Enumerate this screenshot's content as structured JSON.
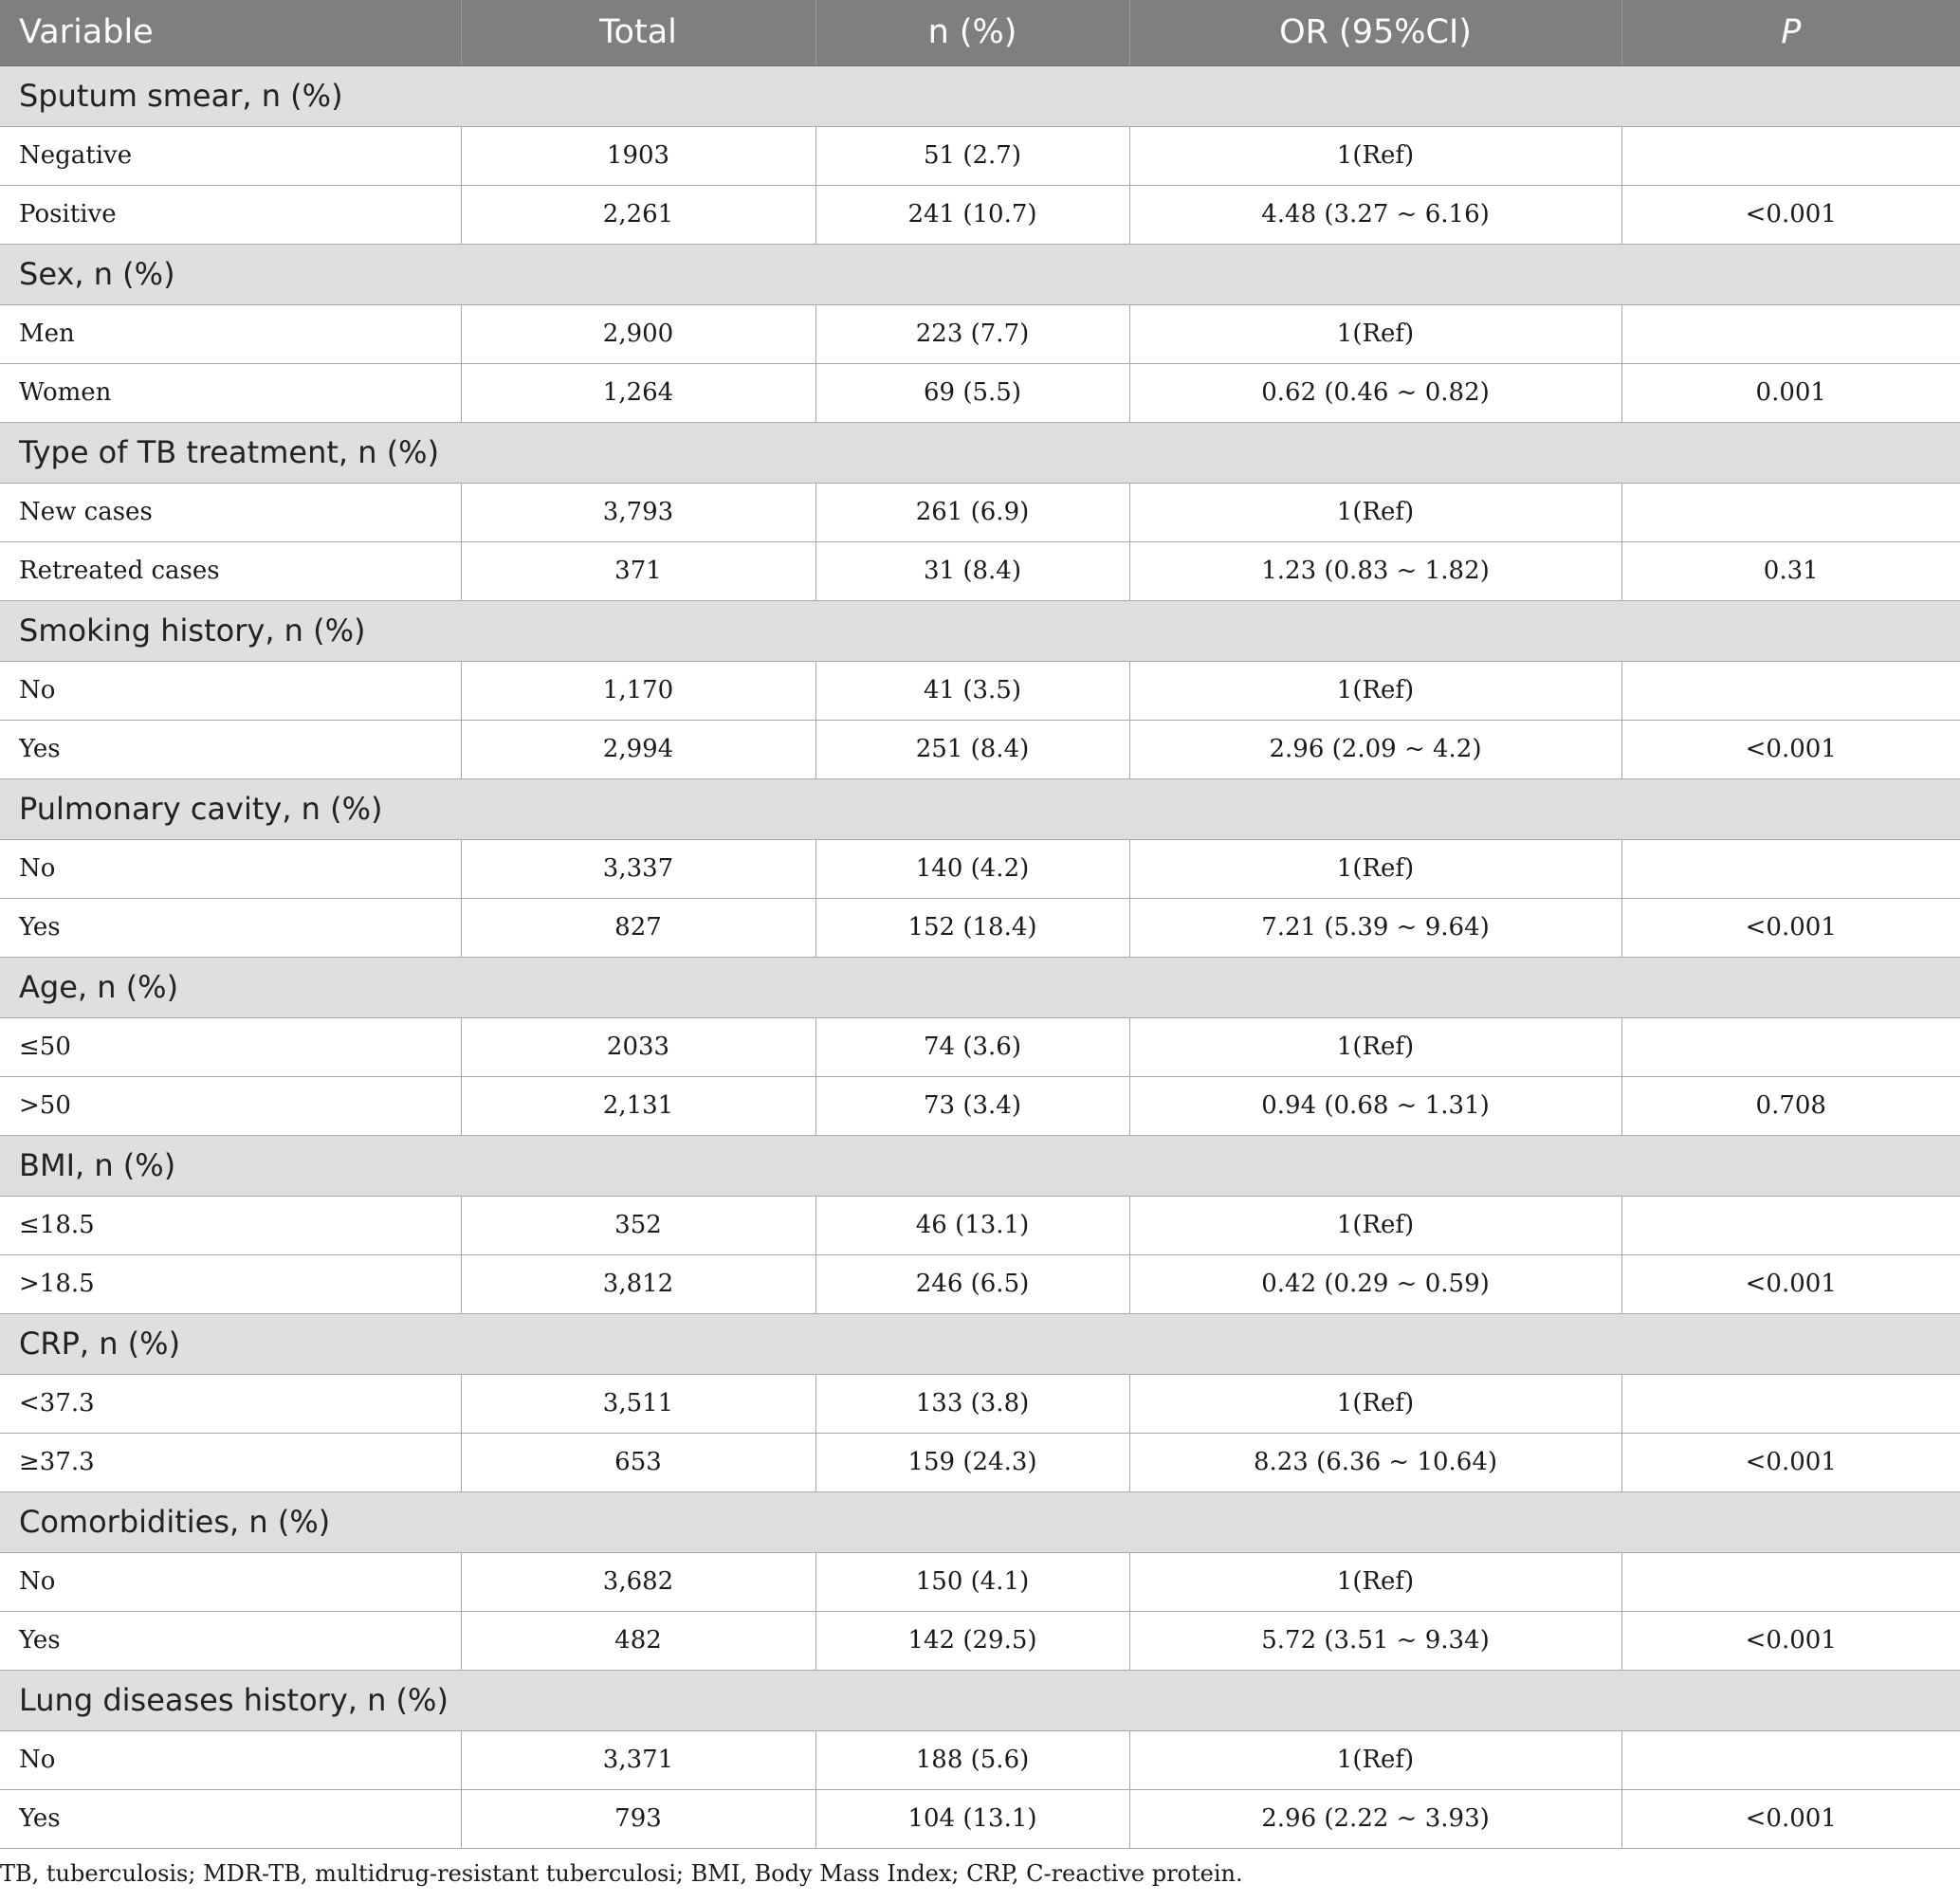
{
  "header": [
    "Variable",
    "Total",
    "n (%)",
    "OR (95%CI)",
    "P"
  ],
  "sections": [
    {
      "title": "Sputum smear, n (%)",
      "rows": [
        {
          "label": "Negative",
          "total": "1903",
          "n": "51 (2.7)",
          "or": "1(Ref)",
          "p": ""
        },
        {
          "label": "Positive",
          "total": "2,261",
          "n": "241 (10.7)",
          "or": "4.48 (3.27 ~ 6.16)",
          "p": "<0.001"
        }
      ]
    },
    {
      "title": "Sex, n (%)",
      "rows": [
        {
          "label": "Men",
          "total": "2,900",
          "n": "223 (7.7)",
          "or": "1(Ref)",
          "p": ""
        },
        {
          "label": "Women",
          "total": "1,264",
          "n": "69 (5.5)",
          "or": "0.62 (0.46 ~ 0.82)",
          "p": "0.001"
        }
      ]
    },
    {
      "title": "Type of TB treatment, n (%)",
      "rows": [
        {
          "label": "New cases",
          "total": "3,793",
          "n": "261 (6.9)",
          "or": "1(Ref)",
          "p": ""
        },
        {
          "label": "Retreated cases",
          "total": "371",
          "n": "31 (8.4)",
          "or": "1.23 (0.83 ~ 1.82)",
          "p": "0.31"
        }
      ]
    },
    {
      "title": "Smoking history, n (%)",
      "rows": [
        {
          "label": "No",
          "total": "1,170",
          "n": "41 (3.5)",
          "or": "1(Ref)",
          "p": ""
        },
        {
          "label": "Yes",
          "total": "2,994",
          "n": "251 (8.4)",
          "or": "2.96 (2.09 ~ 4.2)",
          "p": "<0.001"
        }
      ]
    },
    {
      "title": "Pulmonary cavity, n (%)",
      "rows": [
        {
          "label": "No",
          "total": "3,337",
          "n": "140 (4.2)",
          "or": "1(Ref)",
          "p": ""
        },
        {
          "label": "Yes",
          "total": "827",
          "n": "152 (18.4)",
          "or": "7.21 (5.39 ~ 9.64)",
          "p": "<0.001"
        }
      ]
    },
    {
      "title": "Age, n (%)",
      "rows": [
        {
          "label": "≤50",
          "total": "2033",
          "n": "74 (3.6)",
          "or": "1(Ref)",
          "p": ""
        },
        {
          "label": ">50",
          "total": "2,131",
          "n": "73 (3.4)",
          "or": "0.94 (0.68 ~ 1.31)",
          "p": "0.708"
        }
      ]
    },
    {
      "title": "BMI, n (%)",
      "rows": [
        {
          "label": "≤18.5",
          "total": "352",
          "n": "46 (13.1)",
          "or": "1(Ref)",
          "p": ""
        },
        {
          "label": ">18.5",
          "total": "3,812",
          "n": "246 (6.5)",
          "or": "0.42 (0.29 ~ 0.59)",
          "p": "<0.001"
        }
      ]
    },
    {
      "title": "CRP, n (%)",
      "rows": [
        {
          "label": "<37.3",
          "total": "3,511",
          "n": "133 (3.8)",
          "or": "1(Ref)",
          "p": ""
        },
        {
          "label": "≥37.3",
          "total": "653",
          "n": "159 (24.3)",
          "or": "8.23 (6.36 ~ 10.64)",
          "p": "<0.001"
        }
      ]
    },
    {
      "title": "Comorbidities, n (%)",
      "rows": [
        {
          "label": "No",
          "total": "3,682",
          "n": "150 (4.1)",
          "or": "1(Ref)",
          "p": ""
        },
        {
          "label": "Yes",
          "total": "482",
          "n": "142 (29.5)",
          "or": "5.72 (3.51 ~ 9.34)",
          "p": "<0.001"
        }
      ]
    },
    {
      "title": "Lung diseases history, n (%)",
      "rows": [
        {
          "label": "No",
          "total": "3,371",
          "n": "188 (5.6)",
          "or": "1(Ref)",
          "p": ""
        },
        {
          "label": "Yes",
          "total": "793",
          "n": "104 (13.1)",
          "or": "2.96 (2.22 ~ 3.93)",
          "p": "<0.001"
        }
      ]
    }
  ],
  "footnote": "TB, tuberculosis; MDR-TB, multidrug-resistant tuberculosi; BMI, Body Mass Index; CRP, C-reactive protein."
}
